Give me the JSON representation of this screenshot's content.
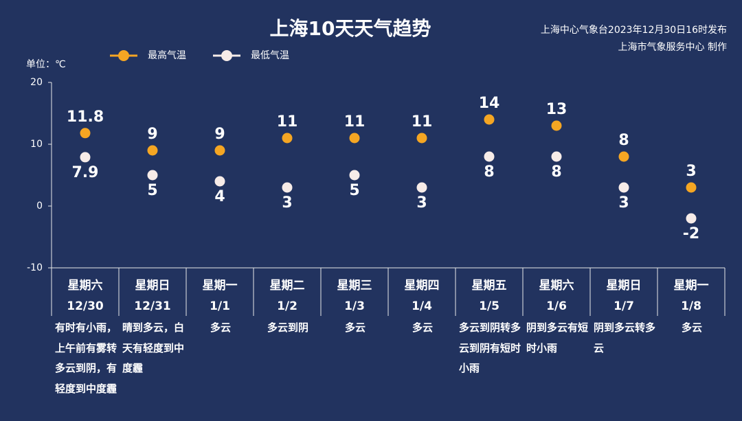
{
  "chart_data": {
    "type": "line",
    "title": "上海10天天气趋势",
    "source_lines": [
      "上海中心气象台2023年12月30日16时发布",
      "上海市气象服务中心 制作"
    ],
    "ylabel": "单位：℃",
    "weekdays": [
      "星期六",
      "星期日",
      "星期一",
      "星期二",
      "星期三",
      "星期四",
      "星期五",
      "星期六",
      "星期日",
      "星期一"
    ],
    "categories": [
      "12/30",
      "12/31",
      "1/1",
      "1/2",
      "1/3",
      "1/4",
      "1/5",
      "1/6",
      "1/7",
      "1/8"
    ],
    "descriptions": [
      "有时有小雨，上午前有雾转多云到阴，有轻度到中度霾",
      "晴到多云，白天有轻度到中度霾",
      "多云",
      "多云到阴",
      "多云",
      "多云",
      "多云到阴转多云到阴有短时小雨",
      "阴到多云有短时小雨",
      "阴到多云转多云",
      "多云"
    ],
    "series": [
      {
        "name": "最高气温",
        "color": "#f5a623",
        "values": [
          11.8,
          9,
          9,
          11,
          11,
          11,
          14,
          13,
          8,
          3
        ]
      },
      {
        "name": "最低气温",
        "color": "#f7ece8",
        "values": [
          7.9,
          5,
          4,
          3,
          5,
          3,
          8,
          8,
          3,
          -2
        ]
      }
    ],
    "ylim": [
      -10,
      20
    ],
    "yticks": [
      -10,
      0,
      10,
      20
    ],
    "grid": false,
    "line_style": "dashed"
  }
}
